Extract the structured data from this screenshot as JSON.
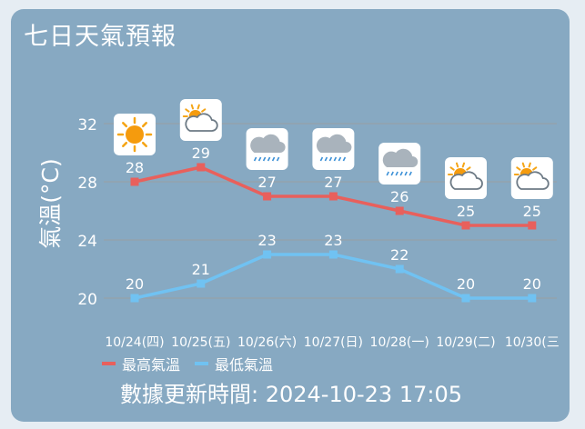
{
  "header": {
    "title": "七日天氣預報"
  },
  "colors": {
    "high": "#e8605c",
    "low": "#70c2f2",
    "grid": "#9a9ea3",
    "text": "#ffffff"
  },
  "legend": {
    "high_label": "最高氣溫",
    "low_label": "最低氣溫"
  },
  "footer": {
    "updated": "數據更新時間: 2024-10-23 17:05"
  },
  "chart_data": {
    "type": "line",
    "ylabel": "氣溫(°C)",
    "ylim": [
      18.5,
      34.5
    ],
    "yticks": [
      20,
      24,
      28,
      32
    ],
    "categories": [
      "10/24(四)",
      "10/25(五)",
      "10/26(六)",
      "10/27(日)",
      "10/28(一)",
      "10/29(二)",
      "10/30(三"
    ],
    "icons": [
      "sunny-icon",
      "partly-cloudy-icon",
      "rain-cloud-icon",
      "rain-cloud-icon",
      "rain-cloud-icon",
      "partly-cloudy-icon",
      "partly-cloudy-icon"
    ],
    "series": [
      {
        "name": "最高氣溫",
        "values": [
          28,
          29,
          27,
          27,
          26,
          25,
          25
        ]
      },
      {
        "name": "最低氣溫",
        "values": [
          20,
          21,
          23,
          23,
          22,
          20,
          20
        ]
      }
    ]
  }
}
